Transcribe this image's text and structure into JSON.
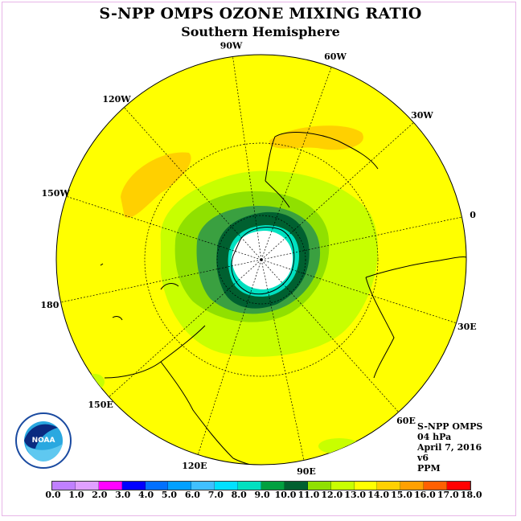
{
  "title": "S-NPP OMPS OZONE MIXING RATIO",
  "subtitle": "Southern Hemisphere",
  "logo_text": "NOAA",
  "info": {
    "instrument": "S-NPP OMPS",
    "level": "04 hPa",
    "date": "April 7, 2016",
    "version": "v6",
    "unit": "PPM"
  },
  "longitude_labels": [
    "90W",
    "60W",
    "30W",
    "0",
    "30E",
    "60E",
    "90E",
    "120E",
    "150E",
    "180",
    "150W",
    "120W"
  ],
  "colorbar": {
    "ticks": [
      "0.0",
      "1.0",
      "2.0",
      "3.0",
      "4.0",
      "5.0",
      "6.0",
      "7.0",
      "8.0",
      "9.0",
      "10.0",
      "11.0",
      "12.0",
      "13.0",
      "14.0",
      "15.0",
      "16.0",
      "17.0",
      "18.0"
    ],
    "colors": [
      "#c080ff",
      "#e0a0ff",
      "#ff00ff",
      "#0000ff",
      "#0070ff",
      "#00a0ff",
      "#40c0ff",
      "#00e0ff",
      "#00e0c0",
      "#00a040",
      "#006030",
      "#90e000",
      "#c8ff00",
      "#ffff00",
      "#ffd000",
      "#ffa000",
      "#ff6000",
      "#ff0000",
      "#806040"
    ]
  },
  "map": {
    "background_color": "#ffff00",
    "outer_color": "#ffffff",
    "pole_color": "#ffffff",
    "contours_shown": [
      "14-15 PPM (orange patches)",
      "11-12 PPM (light green)",
      "10-11 PPM (green)",
      "9-10 PPM (dark green)",
      "8-9 PPM (teal)"
    ]
  }
}
